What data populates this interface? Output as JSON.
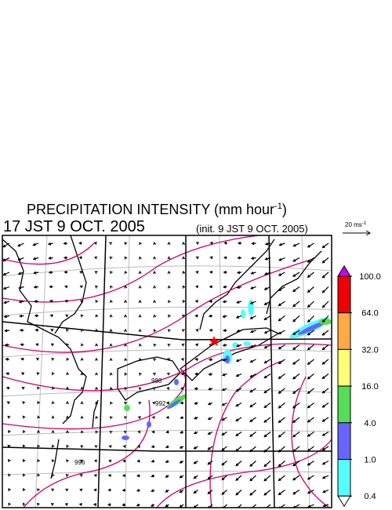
{
  "header": {
    "title": {
      "text": "PRECIPITATION INTENSITY (mm hour",
      "superscript": "-1",
      "close": ")"
    },
    "valid_time": "17 JST 9 OCT. 2005",
    "init_time": "(init. 9 JST 9 OCT. 2005)"
  },
  "vector_key": {
    "text": "20 ms",
    "superscript": "-1"
  },
  "map": {
    "contour_labels": [
      "988",
      "992",
      "996"
    ]
  },
  "colorbar": {
    "ticks": [
      {
        "value": 100,
        "label": "100.0"
      },
      {
        "value": 64,
        "label": "64.0"
      },
      {
        "value": 32,
        "label": "32.0"
      },
      {
        "value": 16,
        "label": "16.0"
      },
      {
        "value": 4,
        "label": "4.0"
      },
      {
        "value": 1,
        "label": "1.0"
      },
      {
        "value": 0.4,
        "label": "0.4"
      }
    ],
    "colors": [
      "#ee0000",
      "#ffaa44",
      "#ffff77",
      "#55dd55",
      "#6666ff",
      "#55ffff"
    ],
    "over_color": "#cc00ff",
    "under_color": "#ffffff"
  }
}
